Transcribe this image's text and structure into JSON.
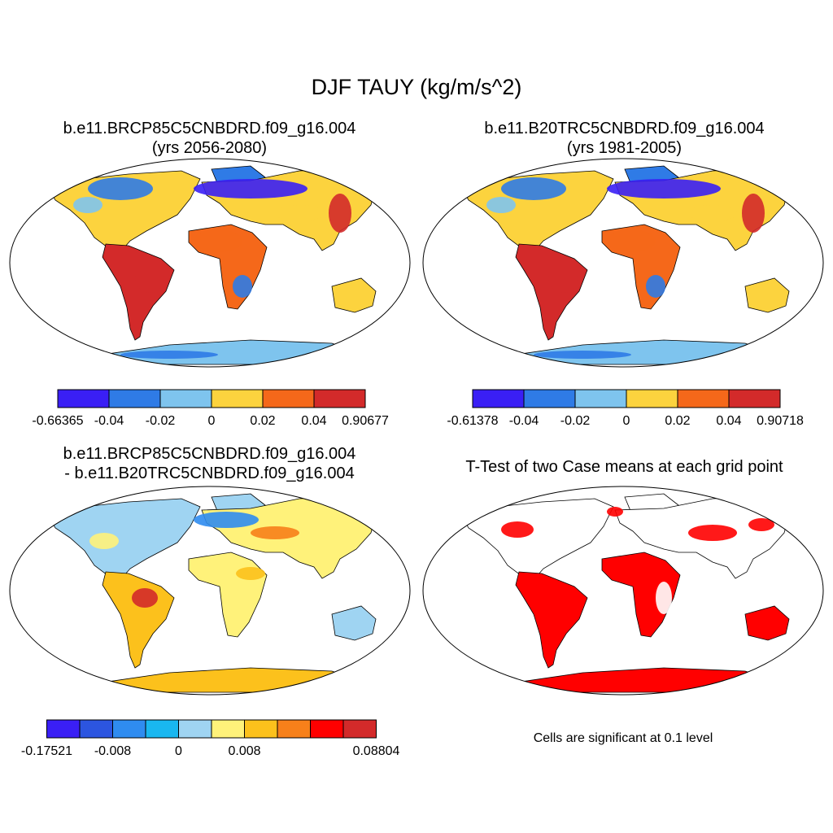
{
  "title": "DJF TAUY (kg/m/s^2)",
  "panels": [
    {
      "title_line1": "b.e11.BRCP85C5CNBDRD.f09_g16.004",
      "title_line2": "(yrs 2056-2080)",
      "colorbar": {
        "colors": [
          "#3a1ff5",
          "#2f7be6",
          "#7ec4ee",
          "#fcd33e",
          "#f5681a",
          "#d32a2a"
        ],
        "labels": [
          "-0.66365",
          "-0.04",
          "-0.02",
          "0",
          "0.02",
          "0.04",
          "0.90677"
        ]
      }
    },
    {
      "title_line1": "b.e11.B20TRC5CNBDRD.f09_g16.004",
      "title_line2": "(yrs 1981-2005)",
      "colorbar": {
        "colors": [
          "#3a1ff5",
          "#2f7be6",
          "#7ec4ee",
          "#fcd33e",
          "#f5681a",
          "#d32a2a"
        ],
        "labels": [
          "-0.61378",
          "-0.04",
          "-0.02",
          "0",
          "0.02",
          "0.04",
          "0.90718"
        ]
      }
    },
    {
      "title_line1": "b.e11.BRCP85C5CNBDRD.f09_g16.004",
      "title_line2": "- b.e11.B20TRC5CNBDRD.f09_g16.004",
      "colorbar": {
        "colors": [
          "#3a1ff5",
          "#2c55e0",
          "#2f8cf0",
          "#19b7f0",
          "#9fd4f2",
          "#fff27a",
          "#fcc11c",
          "#f7801a",
          "#ff0000",
          "#d32a2a"
        ],
        "labels": [
          "-0.17521",
          "",
          "-0.008",
          "",
          "0",
          "",
          "0.008",
          "",
          "",
          "",
          "0.08804"
        ]
      }
    },
    {
      "title_line1": "T-Test of two Case means at each grid point",
      "note": "Cells are significant at 0.1 level",
      "significance_color": "#ff0000"
    }
  ]
}
